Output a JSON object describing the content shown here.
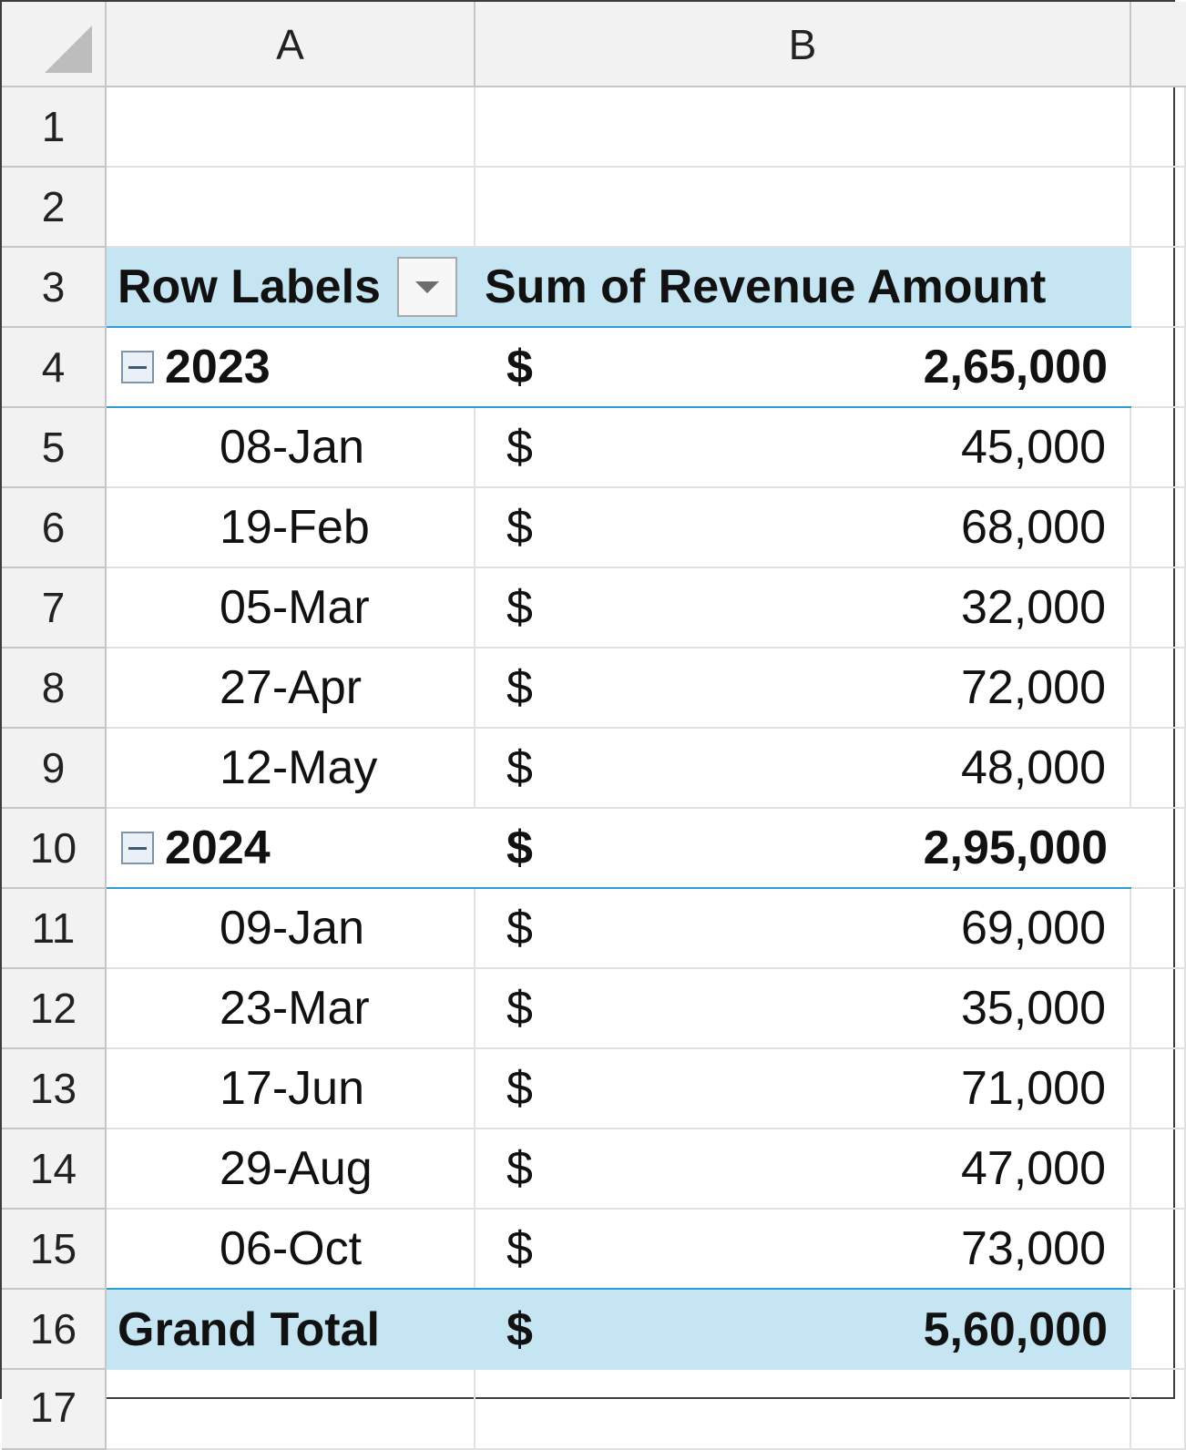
{
  "columns": [
    "A",
    "B"
  ],
  "row_numbers": [
    "1",
    "2",
    "3",
    "4",
    "5",
    "6",
    "7",
    "8",
    "9",
    "10",
    "11",
    "12",
    "13",
    "14",
    "15",
    "16",
    "17"
  ],
  "pivot": {
    "header_label": "Row Labels",
    "header_value": "Sum of Revenue Amount",
    "filter_icon": "dropdown-filter-icon",
    "currency": "$",
    "groups": [
      {
        "label": "2023",
        "total": "2,65,000",
        "items": [
          {
            "label": "08-Jan",
            "value": "45,000"
          },
          {
            "label": "19-Feb",
            "value": "68,000"
          },
          {
            "label": "05-Mar",
            "value": "32,000"
          },
          {
            "label": "27-Apr",
            "value": "72,000"
          },
          {
            "label": "12-May",
            "value": "48,000"
          }
        ]
      },
      {
        "label": "2024",
        "total": "2,95,000",
        "items": [
          {
            "label": "09-Jan",
            "value": "69,000"
          },
          {
            "label": "23-Mar",
            "value": "35,000"
          },
          {
            "label": "17-Jun",
            "value": "71,000"
          },
          {
            "label": "29-Aug",
            "value": "47,000"
          },
          {
            "label": "06-Oct",
            "value": "73,000"
          }
        ]
      }
    ],
    "grand_total_label": "Grand Total",
    "grand_total_value": "5,60,000"
  },
  "colors": {
    "header_highlight": "#c5e5f3",
    "accent_line": "#2f9bd4"
  }
}
